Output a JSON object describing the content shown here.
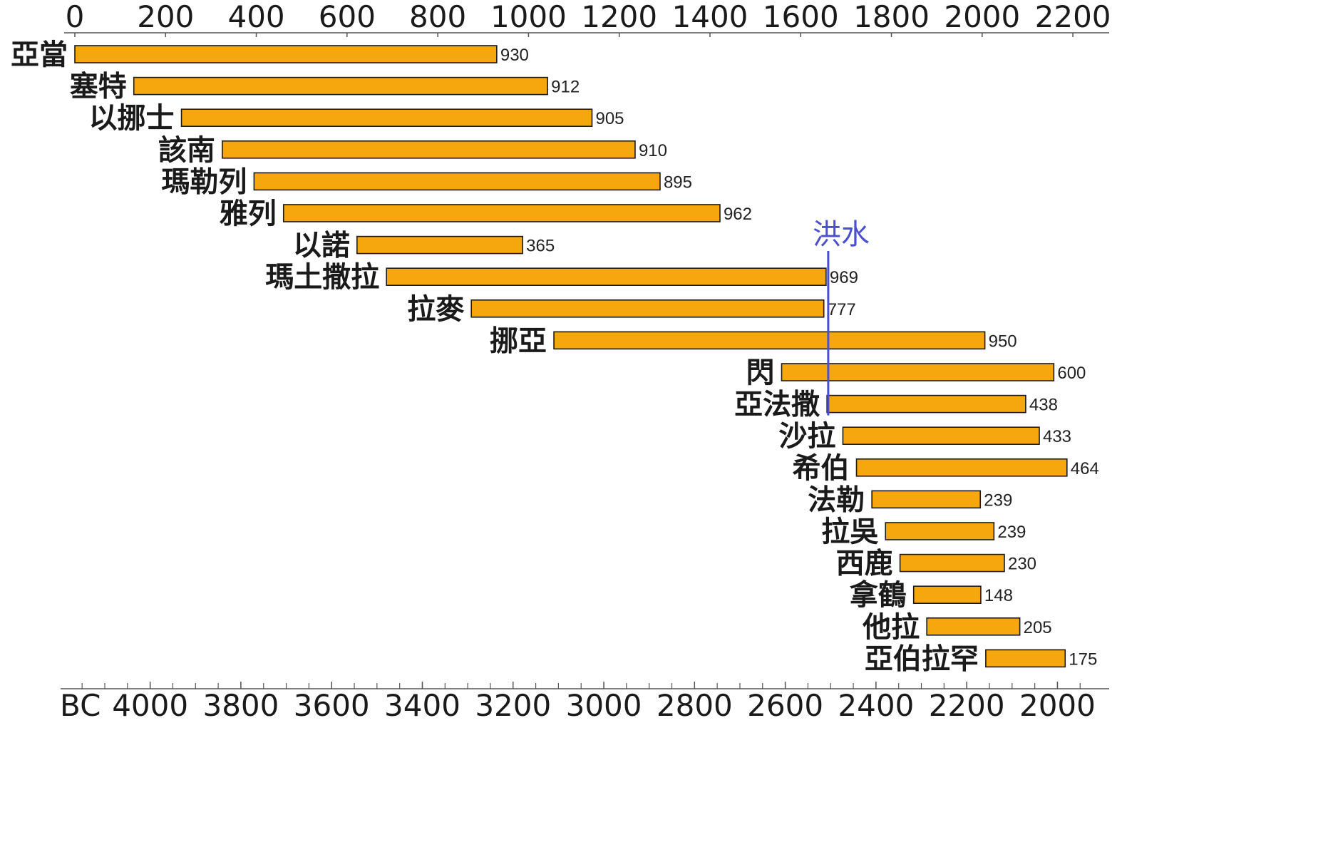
{
  "chart_data": {
    "type": "bar",
    "subtype": "gantt-timeline",
    "top_axis": {
      "ticks": [
        0,
        200,
        400,
        600,
        800,
        1000,
        1200,
        1400,
        1600,
        1800,
        2000,
        2200
      ],
      "tick_labels": [
        "0",
        "200",
        "400",
        "600",
        "800",
        "1000",
        "1200",
        "1400",
        "1600",
        "1800",
        "2000",
        "2200"
      ]
    },
    "bottom_axis": {
      "era_label": "BC",
      "tick_labels": [
        "4000",
        "3800",
        "3600",
        "3400",
        "3200",
        "3000",
        "2800",
        "2600",
        "2400",
        "2200",
        "2000"
      ],
      "tick_values_top_scale": [
        166,
        366,
        566,
        766,
        966,
        1166,
        1366,
        1566,
        1766,
        1966,
        2166
      ]
    },
    "flood": {
      "label": "洪水",
      "year": 1656
    },
    "series": [
      {
        "name": "亞當",
        "start": 0,
        "end": 930,
        "lifespan": "930"
      },
      {
        "name": "塞特",
        "start": 130,
        "end": 1042,
        "lifespan": "912"
      },
      {
        "name": "以挪士",
        "start": 235,
        "end": 1140,
        "lifespan": "905"
      },
      {
        "name": "該南",
        "start": 325,
        "end": 1235,
        "lifespan": "910"
      },
      {
        "name": "瑪勒列",
        "start": 395,
        "end": 1290,
        "lifespan": "895"
      },
      {
        "name": "雅列",
        "start": 460,
        "end": 1422,
        "lifespan": "962"
      },
      {
        "name": "以諾",
        "start": 622,
        "end": 987,
        "lifespan": "365"
      },
      {
        "name": "瑪土撒拉",
        "start": 687,
        "end": 1656,
        "lifespan": "969"
      },
      {
        "name": "拉麥",
        "start": 874,
        "end": 1651,
        "lifespan": "777"
      },
      {
        "name": "挪亞",
        "start": 1056,
        "end": 2006,
        "lifespan": "950"
      },
      {
        "name": "閃",
        "start": 1558,
        "end": 2158,
        "lifespan": "600"
      },
      {
        "name": "亞法撒",
        "start": 1658,
        "end": 2096,
        "lifespan": "438"
      },
      {
        "name": "沙拉",
        "start": 1693,
        "end": 2126,
        "lifespan": "433"
      },
      {
        "name": "希伯",
        "start": 1723,
        "end": 2187,
        "lifespan": "464"
      },
      {
        "name": "法勒",
        "start": 1757,
        "end": 1996,
        "lifespan": "239"
      },
      {
        "name": "拉吳",
        "start": 1787,
        "end": 2026,
        "lifespan": "239"
      },
      {
        "name": "西鹿",
        "start": 1819,
        "end": 2049,
        "lifespan": "230"
      },
      {
        "name": "拿鶴",
        "start": 1849,
        "end": 1997,
        "lifespan": "148"
      },
      {
        "name": "他拉",
        "start": 1878,
        "end": 2083,
        "lifespan": "205"
      },
      {
        "name": "亞伯拉罕",
        "start": 2008,
        "end": 2183,
        "lifespan": "175"
      }
    ],
    "colors": {
      "bar_fill": "#f7a70e",
      "bar_stroke": "#1a1a1a",
      "flood_line": "#4a4fd0",
      "flood_text": "#4a4fd0",
      "axis": "#555555"
    }
  }
}
